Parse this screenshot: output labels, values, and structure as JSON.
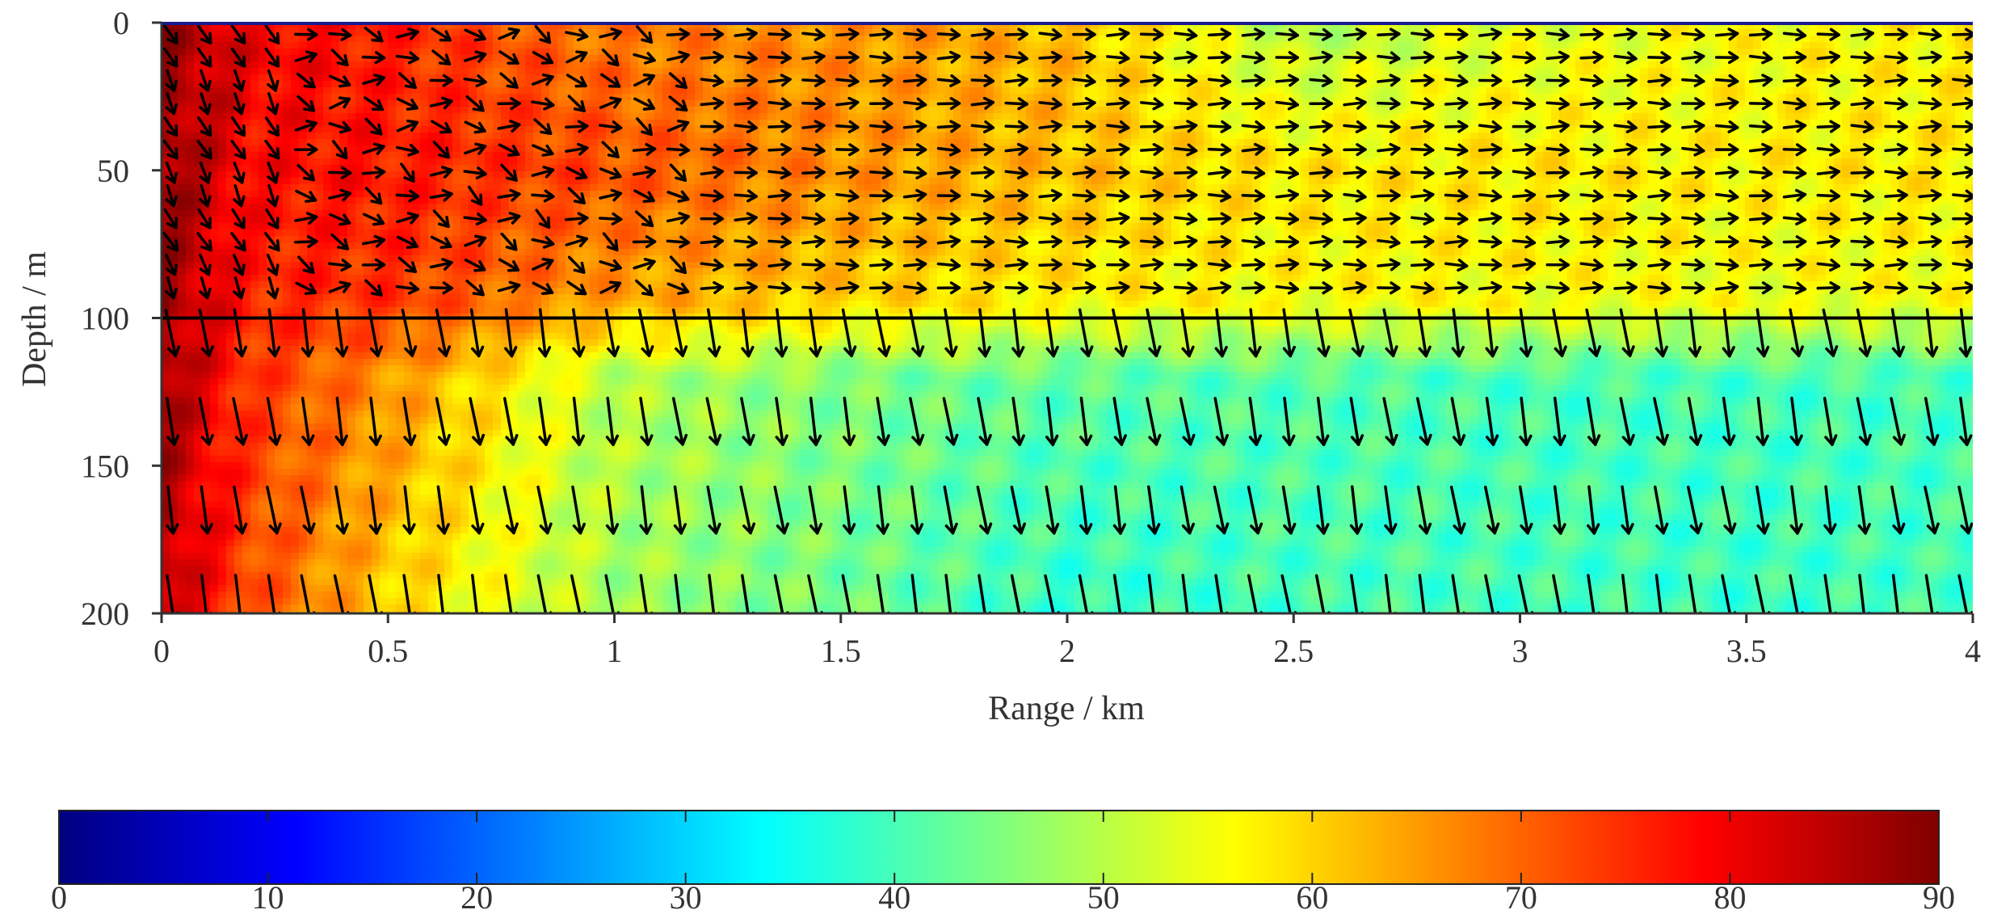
{
  "chart_data": {
    "type": "heatmap",
    "title": "",
    "xlabel": "Range / km",
    "ylabel": "Depth / m",
    "xlim": [
      0,
      4
    ],
    "ylim": [
      200,
      0
    ],
    "x_ticks": [
      0,
      0.5,
      1,
      1.5,
      2,
      2.5,
      3,
      3.5,
      4
    ],
    "x_tick_labels": [
      "0",
      "0.5",
      "1",
      "1.5",
      "2",
      "2.5",
      "3",
      "3.5",
      "4"
    ],
    "y_ticks": [
      0,
      50,
      100,
      150,
      200
    ],
    "y_tick_labels": [
      "0",
      "50",
      "100",
      "150",
      "200"
    ],
    "interface_depth": 100,
    "colorbar": {
      "range": [
        0,
        90
      ],
      "ticks": [
        0,
        10,
        20,
        30,
        40,
        50,
        60,
        70,
        80,
        90
      ],
      "tick_labels": [
        "0",
        "10",
        "20",
        "30",
        "40",
        "50",
        "60",
        "70",
        "80",
        "90"
      ],
      "colormap": "jet",
      "colormap_hex": [
        "#00007f",
        "#0000ff",
        "#007fff",
        "#00ffff",
        "#7fff7f",
        "#ffff00",
        "#ff7f00",
        "#ff0000",
        "#7f0000"
      ]
    },
    "field_approximation": {
      "description_values": "approximate color values at range (km) x depth (m)",
      "ranges_km": [
        0,
        0.05,
        0.2,
        0.5,
        1,
        1.5,
        2,
        2.5,
        3,
        3.5,
        4
      ],
      "depths_m": [
        5,
        50,
        95,
        120,
        200
      ],
      "values": [
        [
          88,
          86,
          80,
          76,
          68,
          66,
          62,
          50,
          54,
          56,
          57
        ],
        [
          88,
          86,
          78,
          77,
          72,
          66,
          62,
          58,
          58,
          57,
          58
        ],
        [
          88,
          85,
          76,
          74,
          64,
          60,
          57,
          56,
          56,
          55,
          55
        ],
        [
          88,
          84,
          74,
          66,
          50,
          45,
          42,
          41,
          40,
          40,
          40
        ],
        [
          85,
          82,
          72,
          60,
          48,
          44,
          38,
          40,
          40,
          39,
          40
        ]
      ]
    },
    "vector_field": {
      "upper_layer": "arrows point mostly horizontally to the right (direction of increasing range) with local tilts",
      "lower_layer": "arrows point steeply downward, slightly tilted toward increasing range"
    }
  }
}
